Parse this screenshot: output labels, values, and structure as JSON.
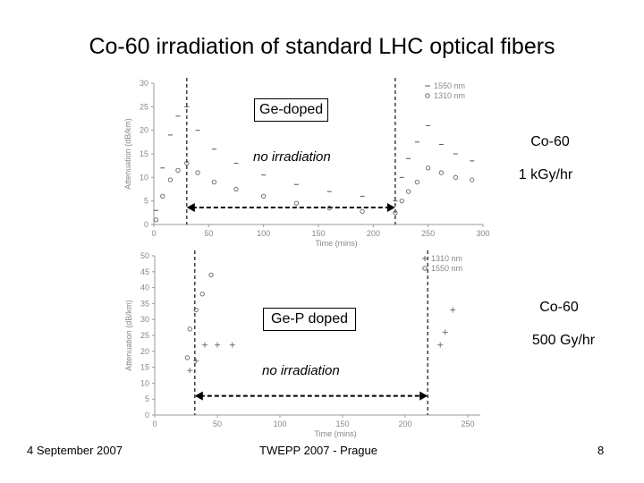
{
  "slide": {
    "title": "Co-60 irradiation of standard LHC optical fibers",
    "footer_left": "4 September 2007",
    "footer_center": "TWEPP 2007 - Prague",
    "page_number": "8"
  },
  "annotations": {
    "top_box": "Ge-doped",
    "top_no_irr": "no irradiation",
    "top_source": "Co-60",
    "top_rate": "1 kGy/hr",
    "bottom_box": "Ge-P doped",
    "bottom_no_irr": "no irradiation",
    "bottom_source": "Co-60",
    "bottom_rate": "500 Gy/hr"
  },
  "chart_data": [
    {
      "type": "scatter",
      "title": "",
      "xlabel": "Time (mins)",
      "ylabel": "Attenuation (dB/km)",
      "xlim": [
        0,
        300
      ],
      "ylim": [
        0,
        30
      ],
      "xticks": [
        "0",
        "50",
        "100",
        "150",
        "200",
        "250",
        "300"
      ],
      "yticks": [
        "0",
        "5",
        "10",
        "15",
        "20",
        "25",
        "30"
      ],
      "vlines": [
        30,
        220
      ],
      "irradiation_gap": [
        30,
        220
      ],
      "legend": "top-right",
      "grid": false,
      "series": [
        {
          "name": "1550 nm",
          "marker": "dash",
          "x": [
            2,
            8,
            15,
            22,
            30,
            40,
            55,
            75,
            100,
            130,
            160,
            190,
            220,
            226,
            232,
            240,
            250,
            262,
            275,
            290
          ],
          "y": [
            3,
            12,
            19,
            23,
            25,
            20,
            16,
            13,
            10.5,
            8.5,
            7,
            6,
            5,
            10,
            14,
            17.5,
            21,
            17,
            15,
            13.5
          ]
        },
        {
          "name": "1310 nm",
          "marker": "circle",
          "x": [
            2,
            8,
            15,
            22,
            30,
            40,
            55,
            75,
            100,
            130,
            160,
            190,
            220,
            226,
            232,
            240,
            250,
            262,
            275,
            290
          ],
          "y": [
            1,
            6,
            9.5,
            11.5,
            13,
            11,
            9,
            7.5,
            6,
            4.5,
            3.5,
            2.8,
            2.5,
            5,
            7,
            9,
            12,
            11,
            10,
            9.5
          ]
        }
      ]
    },
    {
      "type": "scatter",
      "title": "",
      "xlabel": "Time (mins)",
      "ylabel": "Attenuation (dB/km)",
      "xlim": [
        0,
        260
      ],
      "ylim": [
        0,
        50
      ],
      "xticks": [
        "0",
        "50",
        "100",
        "150",
        "200",
        "250"
      ],
      "yticks": [
        "0",
        "5",
        "10",
        "15",
        "20",
        "25",
        "30",
        "35",
        "40",
        "45",
        "50"
      ],
      "vlines": [
        32,
        218
      ],
      "irradiation_gap": [
        32,
        218
      ],
      "legend": "top-right",
      "grid": false,
      "series": [
        {
          "name": "1310 nm",
          "marker": "plus",
          "x": [
            28,
            33,
            40,
            50,
            62,
            228,
            232,
            238
          ],
          "y": [
            14,
            17,
            22,
            22,
            22,
            22,
            26,
            33
          ]
        },
        {
          "name": "1550 nm",
          "marker": "circle",
          "x": [
            26,
            28,
            33,
            38,
            45
          ],
          "y": [
            18,
            27,
            33,
            38,
            44
          ]
        }
      ]
    }
  ]
}
